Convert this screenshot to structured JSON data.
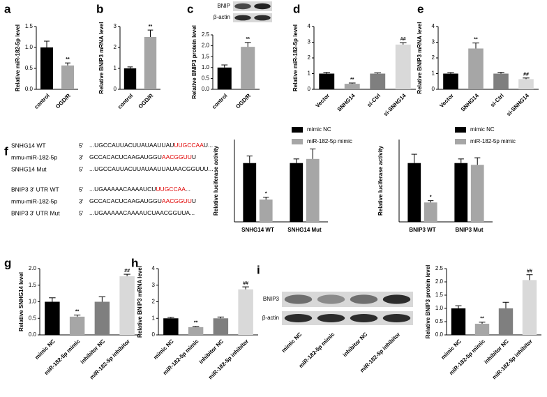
{
  "panel_labels": [
    "a",
    "b",
    "c",
    "d",
    "e",
    "f",
    "g",
    "h",
    "i"
  ],
  "sequences": [
    {
      "name": "SNHG14 WT",
      "end": "5′",
      "parts": [
        {
          "text": "...UGCCAUUACUUAUAAUUAU",
          "color": "#000000"
        },
        {
          "text": "UUGCCAA",
          "color": "#e00000"
        },
        {
          "text": "U...",
          "color": "#000000"
        }
      ]
    },
    {
      "name": "mmu-miR-182-5p",
      "end": "3′",
      "parts": [
        {
          "text": "GCCACACUCAAGAUGGU",
          "color": "#000000"
        },
        {
          "text": "AACGGUU",
          "color": "#e00000"
        },
        {
          "text": "U",
          "color": "#000000"
        }
      ]
    },
    {
      "name": "SNHG14 Mut",
      "end": "5′",
      "parts": [
        {
          "text": "...UGCCAUUACUUAUAAUUAUAACGGUUU...",
          "color": "#000000"
        }
      ]
    },
    {
      "name": "BNIP3 3′ UTR WT",
      "end": "5′",
      "parts": [
        {
          "text": "...UGAAAAACAAAAUCU",
          "color": "#000000"
        },
        {
          "text": "UUGCCAA",
          "color": "#e00000"
        },
        {
          "text": "...",
          "color": "#000000"
        }
      ]
    },
    {
      "name": "mmu-miR-182-5p",
      "end": "3′",
      "parts": [
        {
          "text": "GCCACACUCAAGAUGGU",
          "color": "#000000"
        },
        {
          "text": "AACGGUU",
          "color": "#e00000"
        },
        {
          "text": "U",
          "color": "#000000"
        }
      ]
    },
    {
      "name": "BNIP3 3′ UTR Mut",
      "end": "5′",
      "parts": [
        {
          "text": "...UGAAAAACAAAAUCUAACGGUUA...",
          "color": "#000000"
        }
      ]
    }
  ],
  "chart_data": [
    {
      "type": "bar",
      "y_label": "Relative miR-182-5p level",
      "categories": [
        "control",
        "OGD/R"
      ],
      "colors": [
        "#000000",
        "#a6a6a6"
      ],
      "values": [
        1.0,
        0.57
      ],
      "errors": [
        0.15,
        0.06
      ],
      "value_annotations": [
        null,
        "**"
      ],
      "ylim": [
        0,
        1.5
      ],
      "yticks": [
        {
          "value": 0,
          "label": "0.0"
        },
        0.5,
        {
          "value": 1,
          "label": "1.0"
        },
        1.5
      ]
    },
    {
      "type": "bar",
      "y_label": "Relative BNIP3 mRNA level",
      "categories": [
        "control",
        "OGD/R"
      ],
      "colors": [
        "#000000",
        "#a6a6a6"
      ],
      "values": [
        1.0,
        2.5
      ],
      "errors": [
        0.07,
        0.33
      ],
      "value_annotations": [
        null,
        "**"
      ],
      "ylim": [
        0,
        3
      ],
      "yticks": [
        0,
        1,
        2,
        3
      ]
    },
    {
      "type": "bar",
      "y_label": "Relative BNIP3 protein level",
      "blot_labels": [
        "BNIP",
        "β-actin"
      ],
      "categories": [
        "control",
        "OGD/R"
      ],
      "colors": [
        "#000000",
        "#a6a6a6"
      ],
      "values": [
        1.0,
        1.95
      ],
      "errors": [
        0.12,
        0.2
      ],
      "value_annotations": [
        null,
        "**"
      ],
      "ylim": [
        0,
        2.5
      ],
      "yticks": [
        {
          "value": 0,
          "label": "0.0"
        },
        0.5,
        {
          "value": 1,
          "label": "1.0"
        },
        1.5,
        {
          "value": 2,
          "label": "2.0"
        },
        2.5
      ]
    },
    {
      "type": "bar",
      "y_label": "Relative miR-182-5p level",
      "categories": [
        "Vector",
        "SNHG14",
        "si-Ctrl",
        "si-SNHG14"
      ],
      "colors": [
        "#000000",
        "#a6a6a6",
        "#7f7f7f",
        "#d9d9d9"
      ],
      "values": [
        1.0,
        0.35,
        1.0,
        2.85
      ],
      "errors": [
        0.08,
        0.05,
        0.05,
        0.12
      ],
      "value_annotations": [
        null,
        "**",
        null,
        "##"
      ],
      "ylim": [
        0,
        4
      ],
      "yticks": [
        0,
        1,
        2,
        3,
        4
      ]
    },
    {
      "type": "bar",
      "y_label": "Relative BNIP3 mRNA level",
      "categories": [
        "Vector",
        "SNHG14",
        "si-Ctrl",
        "si-SNHG14"
      ],
      "colors": [
        "#000000",
        "#a6a6a6",
        "#7f7f7f",
        "#d9d9d9"
      ],
      "values": [
        1.0,
        2.6,
        1.0,
        0.65
      ],
      "errors": [
        0.07,
        0.35,
        0.08,
        0.07
      ],
      "value_annotations": [
        null,
        "**",
        null,
        "##"
      ],
      "ylim": [
        0,
        4
      ],
      "yticks": [
        0,
        1,
        2,
        3,
        4
      ]
    },
    {
      "type": "grouped_bar",
      "y_label": "Relative luciferase activity",
      "categories": [
        "SNHG14 WT",
        "SNHG14 Mut"
      ],
      "legend": "upper right",
      "ylim": [
        0,
        1.4
      ],
      "series": [
        {
          "name": "mimic NC",
          "color": "#000000",
          "values": [
            1.0,
            1.0
          ],
          "errors": [
            0.12,
            0.07
          ],
          "value_annotations": [
            null,
            null
          ]
        },
        {
          "name": "miR-182-5p mimic",
          "color": "#a6a6a6",
          "values": [
            0.38,
            1.07
          ],
          "errors": [
            0.04,
            0.17
          ],
          "value_annotations": [
            "*",
            null
          ]
        }
      ]
    },
    {
      "type": "grouped_bar",
      "y_label": "Relative luciferase activity",
      "categories": [
        "BNIP3 WT",
        "BNIP3 Mut"
      ],
      "legend": "upper right",
      "ylim": [
        0,
        1.4
      ],
      "series": [
        {
          "name": "mimic NC",
          "color": "#000000",
          "values": [
            1.0,
            1.0
          ],
          "errors": [
            0.15,
            0.07
          ],
          "value_annotations": [
            null,
            null
          ]
        },
        {
          "name": "miR-182-5p mimic",
          "color": "#a6a6a6",
          "values": [
            0.33,
            0.97
          ],
          "errors": [
            0.03,
            0.12
          ],
          "value_annotations": [
            "*",
            null
          ]
        }
      ]
    },
    {
      "type": "bar",
      "y_label": "Relative SNHG14 level",
      "categories": [
        "mimic NC",
        "miR-182-5p mimic",
        "inhibitor NC",
        "miR-182-5p inhibitor"
      ],
      "colors": [
        "#000000",
        "#a6a6a6",
        "#7f7f7f",
        "#d9d9d9"
      ],
      "values": [
        1.0,
        0.55,
        1.0,
        1.77
      ],
      "errors": [
        0.12,
        0.05,
        0.15,
        0.06
      ],
      "value_annotations": [
        null,
        "**",
        null,
        "##"
      ],
      "ylim": [
        0,
        2
      ],
      "yticks": [
        {
          "value": 0,
          "label": "0.0"
        },
        0.5,
        {
          "value": 1,
          "label": "1.0"
        },
        1.5,
        {
          "value": 2,
          "label": "2.0"
        }
      ]
    },
    {
      "type": "bar",
      "y_label": "Relative BNIP3 mRNA level",
      "categories": [
        "mimic NC",
        "miR-182-5p mimic",
        "inhibitor NC",
        "miR-182-5p inhibitor"
      ],
      "colors": [
        "#000000",
        "#a6a6a6",
        "#7f7f7f",
        "#d9d9d9"
      ],
      "values": [
        1.0,
        0.47,
        1.0,
        2.75
      ],
      "errors": [
        0.06,
        0.04,
        0.08,
        0.15
      ],
      "value_annotations": [
        null,
        "**",
        null,
        "##"
      ],
      "ylim": [
        0,
        4
      ],
      "yticks": [
        0,
        1,
        2,
        3,
        4
      ]
    },
    {
      "type": "bar",
      "y_label": "Relative BNIP3 protein level",
      "blot_labels": [
        "BNIP3",
        "β-actin"
      ],
      "categories": [
        "mimic NC",
        "miR-182-5p mimic",
        "inhibitor NC",
        "miR-182-5p inhibitor"
      ],
      "colors": [
        "#000000",
        "#a6a6a6",
        "#7f7f7f",
        "#d9d9d9"
      ],
      "values": [
        1.0,
        0.42,
        1.0,
        2.07
      ],
      "errors": [
        0.1,
        0.06,
        0.23,
        0.2
      ],
      "value_annotations": [
        null,
        "**",
        null,
        "##"
      ],
      "ylim": [
        0,
        2.5
      ],
      "yticks": [
        {
          "value": 0,
          "label": "0.0"
        },
        0.5,
        {
          "value": 1,
          "label": "1.0"
        },
        1.5,
        {
          "value": 2,
          "label": "2.0"
        },
        2.5
      ]
    }
  ]
}
